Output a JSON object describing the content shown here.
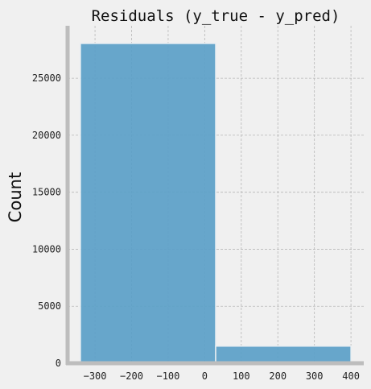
{
  "chart_data": {
    "type": "bar",
    "title": "Residuals (y_true - y_pred)",
    "xlabel": "",
    "ylabel": "Count",
    "bins": [
      {
        "x_start": -340,
        "x_end": 30,
        "count": 28050
      },
      {
        "x_start": 30,
        "x_end": 400,
        "count": 1500
      }
    ],
    "xlim": [
      -375,
      435
    ],
    "ylim": [
      0,
      29600
    ],
    "xticks": [
      -300,
      -200,
      -100,
      0,
      100,
      200,
      300,
      400
    ],
    "yticks": [
      0,
      5000,
      10000,
      15000,
      20000,
      25000
    ],
    "grid": true,
    "colors": {
      "bar_fill": "#5b9fc8",
      "bar_edge": "#e8eef2",
      "background": "#f0f0f0",
      "grid": "#b8b8b8",
      "spine": "#bdbdbd"
    }
  }
}
